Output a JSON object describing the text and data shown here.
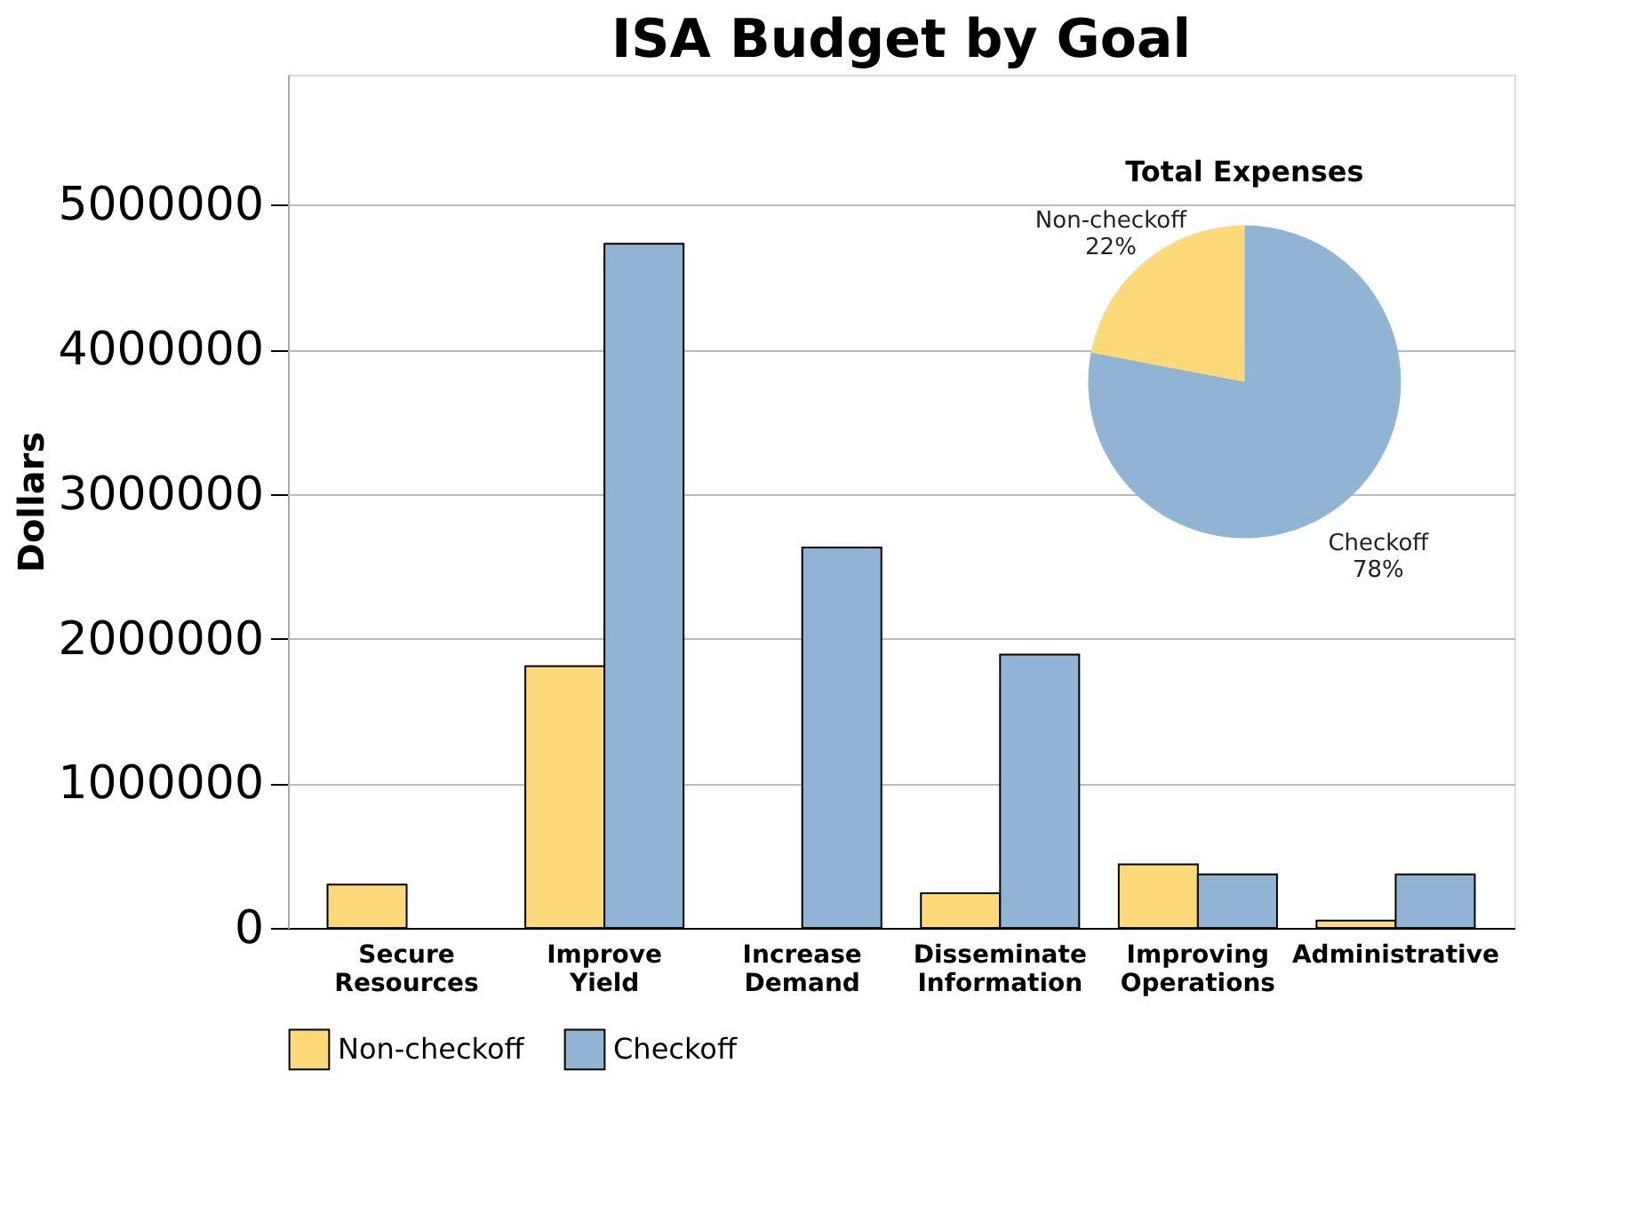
{
  "chart_data": [
    {
      "type": "bar",
      "title": "ISA Budget by Goal",
      "ylabel": "Dollars",
      "categories": [
        "Secure Resources",
        "Improve Yield",
        "Increase Demand",
        "Disseminate Information",
        "Improving Operations",
        "Administrative"
      ],
      "series": [
        {
          "name": "Non-checkoff",
          "color": "#fdd97a",
          "values": [
            300000,
            1810000,
            0,
            240000,
            440000,
            50000
          ]
        },
        {
          "name": "Checkoff",
          "color": "#91b4d5",
          "values": [
            0,
            4730000,
            2630000,
            1890000,
            370000,
            370000
          ]
        }
      ],
      "ylim": [
        0,
        5900000
      ],
      "yticks": [
        0,
        1000000,
        2000000,
        3000000,
        4000000,
        5000000
      ],
      "grid": "y",
      "legend": "bottom"
    },
    {
      "type": "pie",
      "title": "Total Expenses",
      "categories": [
        "Non-checkoff",
        "Checkoff"
      ],
      "values": [
        22,
        78
      ],
      "colors": [
        "#fdd97a",
        "#91b4d5"
      ],
      "value_labels": [
        "22%",
        "78%"
      ]
    }
  ]
}
